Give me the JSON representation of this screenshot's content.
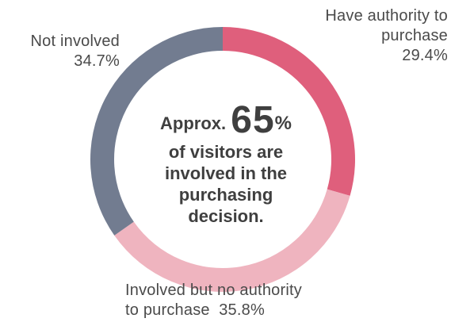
{
  "chart_data": {
    "type": "pie",
    "categories": [
      "Have authority to purchase",
      "Involved but no authority to purchase",
      "Not involved"
    ],
    "values": [
      29.4,
      35.8,
      34.7
    ],
    "colors": [
      "#df5f7c",
      "#efb4bf",
      "#727c90"
    ],
    "slices": [
      {
        "label_line1": "Have authority to",
        "label_line2": "purchase",
        "value_text": "29.4%"
      },
      {
        "label_line1": "Involved but no authority",
        "label_line2": "to purchase",
        "value_text": "35.8%"
      },
      {
        "label_line1": "Not involved",
        "value_text": "34.7%"
      }
    ],
    "center": {
      "prefix": "Approx.",
      "number": "65",
      "percent": "%",
      "line1": "of visitors are",
      "line2": "involved in the",
      "line3": "purchasing",
      "line4": "decision."
    }
  }
}
